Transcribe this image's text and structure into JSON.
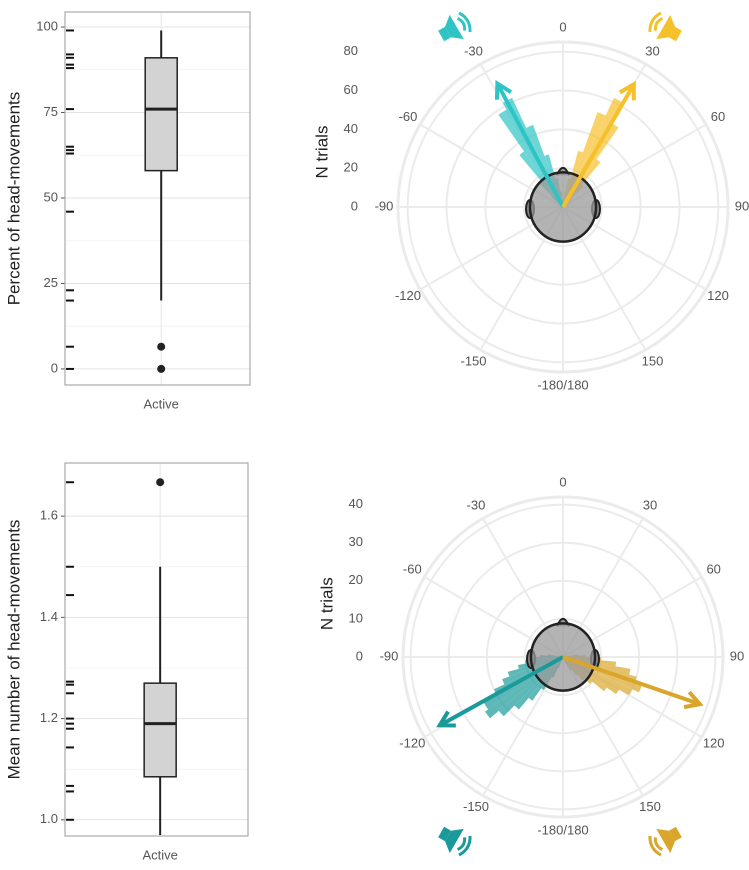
{
  "chart_data": [
    {
      "type": "boxplot",
      "ylabel": "Percent of head-movements",
      "categories": [
        "Active"
      ],
      "whisker_low": 20,
      "q1": 58,
      "median": 76,
      "q3": 91,
      "whisker_high": 99,
      "outliers": [
        6.5,
        0
      ],
      "rug": [
        99,
        92,
        91,
        89,
        88,
        76,
        65,
        64,
        63,
        46,
        23,
        20,
        6.5,
        0
      ],
      "ylim": [
        -4.7,
        104.4
      ],
      "yticks": [
        0,
        25,
        50,
        75,
        100
      ],
      "grid": true
    },
    {
      "type": "boxplot",
      "ylabel": "Mean number of head-movements",
      "categories": [
        "Active"
      ],
      "whisker_low": 0.97,
      "q1": 1.085,
      "median": 1.19,
      "q3": 1.27,
      "whisker_high": 1.5,
      "outliers": [
        1.667
      ],
      "rug": [
        1.667,
        1.5,
        1.444,
        1.273,
        1.267,
        1.25,
        1.2,
        1.19,
        1.18,
        1.143,
        1.067,
        1.056,
        1.0
      ],
      "ylim": [
        0.968,
        1.705
      ],
      "yticks": [
        {
          "value": 1,
          "label": "1.0"
        },
        1.2,
        1.4,
        1.6
      ],
      "grid": true
    },
    {
      "type": "polar_histogram",
      "rlabel": "N trials",
      "rlim": [
        0,
        85
      ],
      "rticks": [
        0,
        20,
        40,
        60,
        80
      ],
      "angle_ticks": [
        0,
        30,
        60,
        90,
        120,
        150,
        {
          "value": 180,
          "label": "-180/180"
        },
        -150,
        -120,
        -90,
        -60,
        -30
      ],
      "series": [
        {
          "color": "#2ec4c6",
          "bins": [
            -50,
            -45,
            -40,
            -35,
            -30,
            -25,
            -20,
            -15,
            -10,
            -5,
            0,
            5,
            10,
            15,
            20,
            25,
            30,
            35,
            40,
            45,
            50
          ],
          "values": [
            8,
            18,
            35,
            58,
            62,
            45,
            28,
            15,
            8,
            4,
            0,
            0,
            0,
            0,
            0,
            0,
            0,
            0,
            0,
            0
          ]
        },
        {
          "color": "#f6c02a",
          "bins": [
            -50,
            -45,
            -40,
            -35,
            -30,
            -25,
            -20,
            -15,
            -10,
            -5,
            0,
            5,
            10,
            15,
            20,
            25,
            30,
            35,
            40,
            45,
            50
          ],
          "values": [
            0,
            0,
            0,
            0,
            0,
            0,
            0,
            0,
            0,
            0,
            4,
            8,
            15,
            30,
            52,
            62,
            50,
            30,
            15,
            6
          ]
        }
      ],
      "arrows": [
        {
          "color": "#2ec4c6",
          "angle": -28,
          "length": 72
        },
        {
          "color": "#f6c02a",
          "angle": 30,
          "length": 73
        }
      ],
      "grid": true
    },
    {
      "type": "polar_histogram",
      "rlabel": "N trials",
      "rlim": [
        0,
        42
      ],
      "rticks": [
        0,
        10,
        20,
        30,
        40
      ],
      "angle_ticks": [
        0,
        30,
        60,
        90,
        120,
        150,
        {
          "value": 180,
          "label": "-180/180"
        },
        -150,
        -120,
        -90,
        -60,
        -30
      ],
      "series": [
        {
          "color": "#1a9a9a",
          "bins": [
            -160,
            -155,
            -150,
            -145,
            -140,
            -135,
            -130,
            -125,
            -120,
            -115,
            -110,
            -105,
            -100,
            -95,
            -90,
            -85,
            -80
          ],
          "values": [
            3,
            6,
            10,
            14,
            18,
            22,
            25,
            24,
            20,
            17,
            15,
            12,
            10,
            8,
            6,
            4
          ]
        },
        {
          "color": "#d9a52a",
          "bins": [
            80,
            85,
            90,
            95,
            100,
            105,
            110,
            115,
            120,
            125,
            130,
            135,
            140,
            145,
            150,
            155,
            160
          ],
          "values": [
            4,
            6,
            10,
            14,
            18,
            20,
            22,
            20,
            17,
            14,
            10,
            8,
            6,
            4,
            3,
            2
          ]
        }
      ],
      "arrows": [
        {
          "color": "#1a9a9a",
          "angle": -119,
          "length": 37
        },
        {
          "color": "#d9a52a",
          "angle": 109,
          "length": 38
        }
      ],
      "grid": true
    }
  ]
}
